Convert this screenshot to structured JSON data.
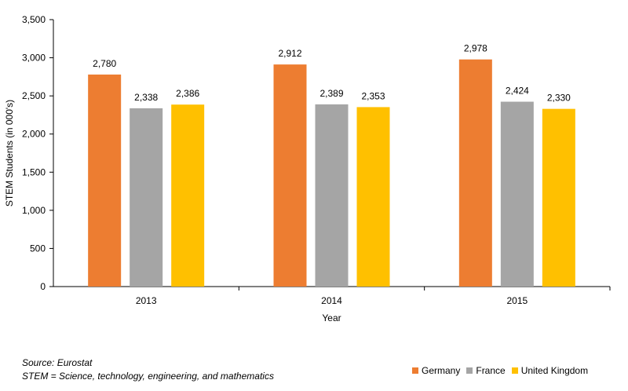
{
  "chart_data": {
    "type": "bar",
    "categories": [
      "2013",
      "2014",
      "2015"
    ],
    "series": [
      {
        "name": "Germany",
        "values": [
          2780,
          2912,
          2978
        ],
        "labels": [
          "2,780",
          "2,912",
          "2,978"
        ],
        "color": "#ED7D31"
      },
      {
        "name": "France",
        "values": [
          2338,
          2389,
          2424
        ],
        "labels": [
          "2,338",
          "2,389",
          "2,424"
        ],
        "color": "#A5A5A5"
      },
      {
        "name": "United Kingdom",
        "values": [
          2386,
          2353,
          2330
        ],
        "labels": [
          "2,386",
          "2,353",
          "2,330"
        ],
        "color": "#FFC000"
      }
    ],
    "xlabel": "Year",
    "ylabel": "STEM Students (in 000's)",
    "ylim": [
      0,
      3500
    ],
    "yticks": [
      0,
      500,
      1000,
      1500,
      2000,
      2500,
      3000,
      3500
    ],
    "ytick_labels": [
      "0",
      "500",
      "1,000",
      "1,500",
      "2,000",
      "2,500",
      "3,000",
      "3,500"
    ],
    "grid": false,
    "legend_position": "bottom-right"
  },
  "notes": {
    "source": "Source: Eurostat",
    "definition": "STEM = Science, technology, engineering, and mathematics"
  }
}
